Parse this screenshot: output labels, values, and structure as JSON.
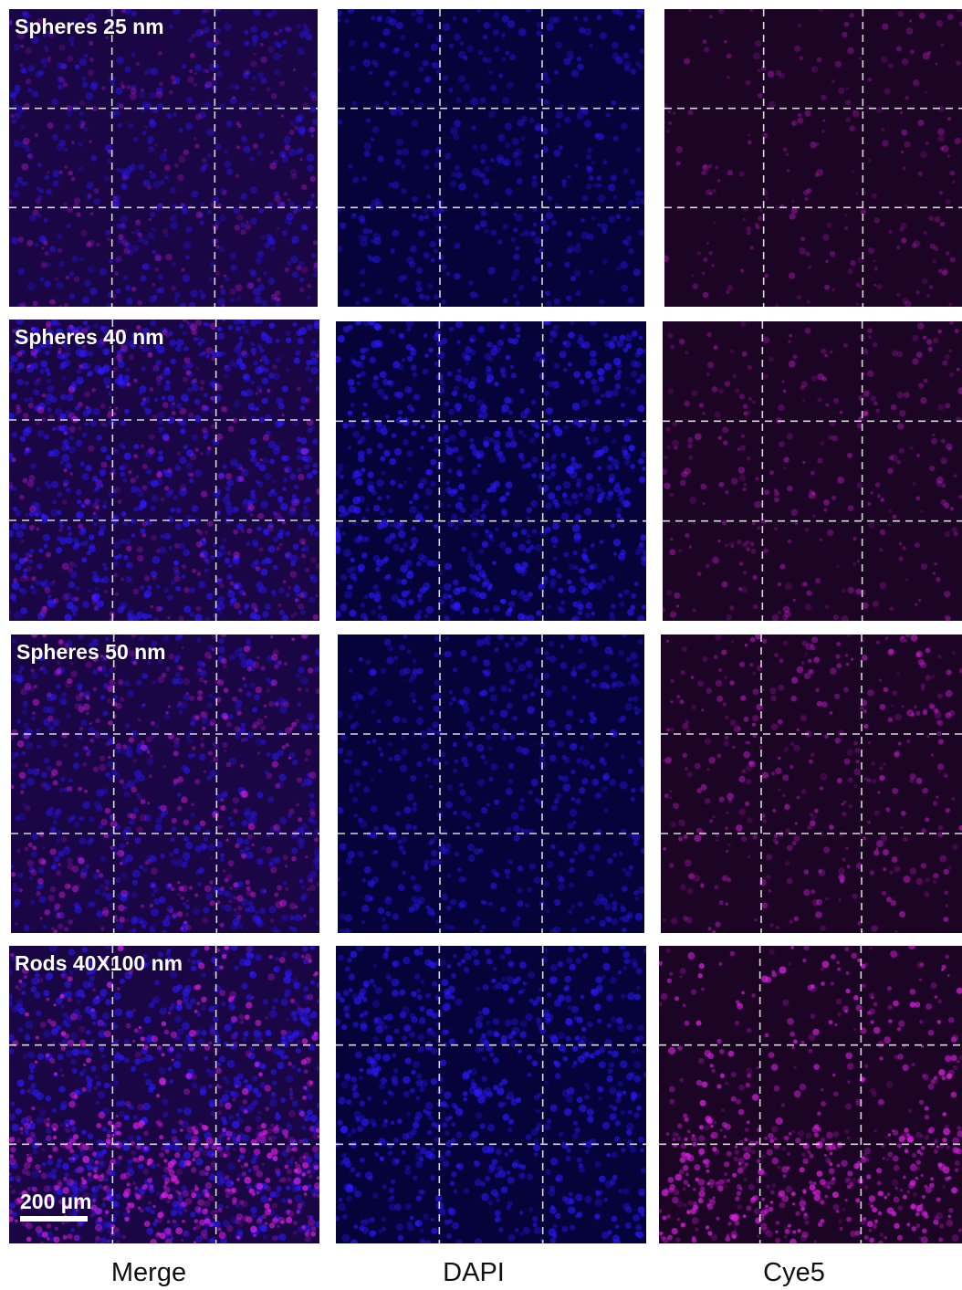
{
  "rows": [
    {
      "label": "Spheres 25 nm",
      "dapi_intensity": 0.45,
      "cy5_intensity": 0.35
    },
    {
      "label": "Spheres 40 nm",
      "dapi_intensity": 0.85,
      "cy5_intensity": 0.45
    },
    {
      "label": "Spheres 50 nm",
      "dapi_intensity": 0.55,
      "cy5_intensity": 0.6
    },
    {
      "label": "Rods 40X100 nm",
      "dapi_intensity": 0.8,
      "cy5_intensity": 1.0
    }
  ],
  "columns": [
    {
      "label": "Merge"
    },
    {
      "label": "DAPI"
    },
    {
      "label": "Cye5"
    }
  ],
  "scale_bar": {
    "text": "200 µm"
  },
  "colors": {
    "dapi": "#2a1aff",
    "cy5": "#e020e8",
    "merge_bg": "#1a0545",
    "dapi_bg": "#06023a",
    "cy5_bg": "#1c0424",
    "grid": "#d8d8d8"
  }
}
